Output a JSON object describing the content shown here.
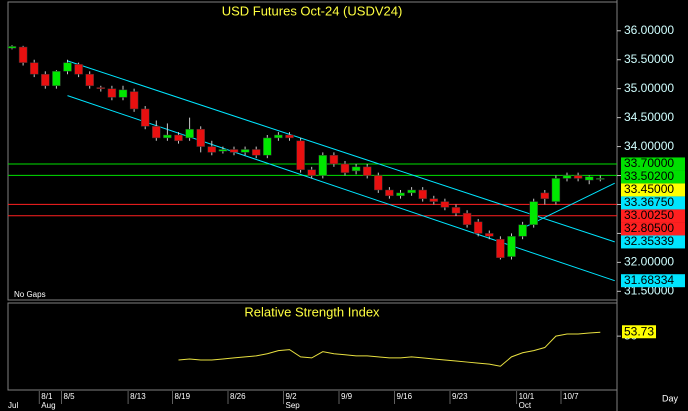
{
  "chart_data": [
    {
      "type": "candlestick",
      "title": "USD Futures Oct-24 (USDV24)",
      "categories": [
        null,
        null,
        null,
        "8/1",
        null,
        "8/5",
        null,
        null,
        null,
        null,
        null,
        "8/13",
        null,
        null,
        null,
        "8/19",
        null,
        null,
        null,
        null,
        "8/26",
        null,
        null,
        null,
        null,
        "9/2",
        null,
        null,
        null,
        null,
        "9/9",
        null,
        null,
        null,
        null,
        "9/16",
        null,
        null,
        null,
        null,
        "9/23",
        null,
        null,
        null,
        null,
        null,
        "10/1",
        null,
        null,
        null,
        "10/7",
        null,
        null,
        null
      ],
      "month_labels": [
        {
          "value": 0,
          "label": "Jul"
        },
        {
          "value": 3,
          "label": "Aug"
        },
        {
          "value": 25,
          "label": "Sep"
        },
        {
          "value": 46,
          "label": "Oct"
        }
      ],
      "open": [
        35.7,
        35.72,
        35.45,
        35.25,
        35.05,
        35.3,
        35.42,
        35.25,
        35.02,
        35.0,
        34.85,
        34.95,
        34.65,
        34.35,
        34.15,
        34.2,
        34.15,
        34.3,
        34.0,
        33.92,
        33.95,
        33.9,
        33.95,
        33.85,
        34.15,
        34.2,
        34.1,
        33.6,
        33.5,
        33.85,
        33.7,
        33.58,
        33.65,
        33.5,
        33.25,
        33.15,
        33.2,
        33.25,
        33.1,
        33.05,
        32.95,
        32.85,
        32.7,
        32.5,
        32.4,
        32.1,
        32.45,
        32.65,
        33.2,
        33.05,
        33.45,
        33.5,
        33.42,
        33.45
      ],
      "high": [
        35.75,
        35.74,
        35.5,
        35.3,
        35.32,
        35.5,
        35.45,
        35.3,
        35.05,
        35.05,
        35.05,
        35.0,
        34.7,
        34.45,
        34.4,
        34.25,
        34.5,
        34.35,
        34.1,
        34.0,
        34.0,
        34.0,
        34.0,
        34.2,
        34.25,
        34.25,
        34.15,
        33.65,
        33.9,
        33.9,
        33.75,
        33.7,
        33.7,
        33.55,
        33.3,
        33.25,
        33.3,
        33.3,
        33.15,
        33.1,
        33.0,
        32.9,
        32.75,
        32.55,
        32.45,
        32.5,
        32.7,
        33.1,
        33.25,
        33.5,
        33.55,
        33.55,
        33.5,
        33.5
      ],
      "low": [
        35.68,
        35.4,
        35.2,
        35.0,
        35.0,
        35.25,
        35.2,
        35.0,
        34.95,
        34.8,
        34.8,
        34.6,
        34.3,
        34.1,
        34.1,
        34.05,
        34.1,
        33.9,
        33.85,
        33.88,
        33.85,
        33.85,
        33.8,
        33.8,
        34.1,
        34.1,
        33.55,
        33.45,
        33.45,
        33.65,
        33.5,
        33.52,
        33.45,
        33.2,
        33.1,
        33.1,
        33.15,
        33.05,
        33.0,
        32.9,
        32.8,
        32.6,
        32.45,
        32.4,
        32.05,
        32.05,
        32.4,
        32.6,
        33.0,
        33.0,
        33.4,
        33.4,
        33.35,
        33.4
      ],
      "close": [
        35.73,
        35.45,
        35.25,
        35.05,
        35.3,
        35.45,
        35.25,
        35.05,
        35.0,
        34.85,
        34.98,
        34.65,
        34.35,
        34.15,
        34.2,
        34.1,
        34.3,
        34.0,
        33.9,
        33.95,
        33.9,
        33.95,
        33.85,
        34.15,
        34.2,
        34.15,
        33.6,
        33.5,
        33.85,
        33.7,
        33.55,
        33.65,
        33.5,
        33.25,
        33.15,
        33.2,
        33.25,
        33.1,
        33.05,
        32.95,
        32.85,
        32.65,
        32.5,
        32.45,
        32.08,
        32.45,
        32.65,
        33.05,
        33.1,
        33.45,
        33.5,
        33.45,
        33.48,
        33.45
      ],
      "up_color": "#00e800",
      "down_color": "#e81010",
      "ylim": [
        31.35,
        36.48
      ],
      "yticks": [
        {
          "value": 31.5,
          "label": "31.50000"
        },
        {
          "value": 32,
          "label": "32.00000"
        },
        {
          "value": 32.5,
          "label": "32.50000"
        },
        {
          "value": 33,
          "label": "33.00000"
        },
        {
          "value": 33.5,
          "label": "33.50000"
        },
        {
          "value": 34,
          "label": "34.00000"
        },
        {
          "value": 34.5,
          "label": "34.50000"
        },
        {
          "value": 35,
          "label": "35.00000"
        },
        {
          "value": 35.5,
          "label": "35.50000"
        },
        {
          "value": 36,
          "label": "36.00000"
        }
      ],
      "price_markers": [
        {
          "value": 33.7,
          "label": "33.70000",
          "color": "#00e000",
          "line": true
        },
        {
          "value": 33.502,
          "label": "33.50200",
          "color": "#00e000",
          "line": true
        },
        {
          "value": 33.45,
          "label": "33.45000",
          "color": "#ffff00",
          "line": false
        },
        {
          "value": 33.0025,
          "label": "33.00250",
          "color": "#ff2020",
          "line": true
        },
        {
          "value": 32.805,
          "label": "32.80500",
          "color": "#ff2020",
          "line": true
        }
      ],
      "trendlines": [
        {
          "color": "#00e5ff",
          "start": {
            "x": 5,
            "y": 35.48
          },
          "end": {
            "x": 54.3,
            "y": {
              "value": 32.35339,
              "label": "32.35339"
            }
          }
        },
        {
          "color": "#00e5ff",
          "start": {
            "x": 5,
            "y": 34.88
          },
          "end": {
            "x": 54.3,
            "y": {
              "value": 31.68334,
              "label": "31.68334"
            }
          }
        },
        {
          "color": "#00e5ff",
          "start": {
            "x": 46,
            "y": 32.59
          },
          "end": {
            "x": 54.3,
            "y": {
              "value": 33.3675,
              "label": "33.36750"
            }
          }
        }
      ],
      "annotations": [
        "No Gaps",
        "Day"
      ]
    },
    {
      "type": "line",
      "title": "Relative Strength Index",
      "color": "#e8e040",
      "ylim": [
        0,
        80
      ],
      "yticks": [
        50
      ],
      "values": [
        null,
        null,
        null,
        null,
        null,
        null,
        null,
        null,
        null,
        null,
        null,
        null,
        null,
        null,
        null,
        27,
        28,
        27,
        27,
        28,
        29,
        30,
        31,
        33,
        36,
        37,
        30,
        29,
        35,
        33,
        32,
        31,
        31,
        30,
        29,
        29,
        30,
        29,
        28,
        27,
        26,
        25,
        24,
        23,
        21,
        30,
        34,
        36,
        39,
        50,
        52,
        52,
        53,
        53.73
      ]
    }
  ]
}
